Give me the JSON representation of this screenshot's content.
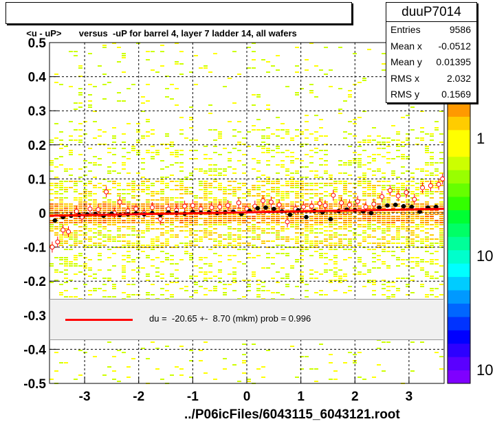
{
  "histogram": {
    "title": "<u - uP>       versus  -uP for barrel 4, layer 7 ladder 14, all wafers",
    "x_axis_title": "../P06icFiles/6043115_6043121.root"
  },
  "stats": {
    "name": "duuP7014",
    "rows": [
      {
        "label": "Entries",
        "value": "9586"
      },
      {
        "label": "Mean x",
        "value": "-0.0512"
      },
      {
        "label": "Mean y",
        "value": "0.01395"
      },
      {
        "label": "RMS x",
        "value": "2.032"
      },
      {
        "label": "RMS y",
        "value": "0.1569"
      }
    ]
  },
  "legend": {
    "fit_text": "du =  -20.65 +-  8.70 (mkm) prob = 0.996",
    "line_color": "#ff0000"
  },
  "palette_labels": {
    "top": "1",
    "middle": "10",
    "bottom": "10"
  },
  "colors": {
    "frame": "#000000",
    "fit": "#ff0000",
    "profile": "#000000",
    "open_marker": "#ff0000",
    "palette": [
      "#7f00ff",
      "#5a00ff",
      "#2d00ff",
      "#0000ff",
      "#0033ff",
      "#0066ff",
      "#0099ff",
      "#00ccff",
      "#00ffff",
      "#00ffcc",
      "#00ff99",
      "#00ff66",
      "#00ff33",
      "#33ff00",
      "#66ff00",
      "#99ff00",
      "#ccff00",
      "#ffff00",
      "#ffff00",
      "#ffcc00",
      "#ff9900"
    ]
  },
  "chart_data": {
    "type": "heatmap",
    "title": "<u - uP>       versus  -uP for barrel 4, layer 7 ladder 14, all wafers",
    "xlabel": "../P06icFiles/6043115_6043121.root",
    "ylabel": "",
    "xlim": [
      -3.65,
      3.65
    ],
    "ylim": [
      -0.5,
      0.5
    ],
    "x_ticks": [
      -3,
      -2,
      -1,
      0,
      1,
      2,
      3
    ],
    "y_ticks": [
      -0.5,
      -0.4,
      -0.3,
      -0.2,
      -0.1,
      0,
      0.1,
      0.2,
      0.3,
      0.4,
      0.5
    ],
    "grid": true,
    "fit_line": {
      "x": [
        -3.65,
        3.65
      ],
      "y": [
        -0.008,
        0.012
      ]
    },
    "profile_filled": {
      "x": [
        -3.55,
        -3.4,
        -3.25,
        -3.1,
        -2.95,
        -2.8,
        -2.65,
        -2.5,
        -2.35,
        -2.2,
        -2.05,
        -1.9,
        -1.75,
        -1.6,
        -1.45,
        -1.3,
        -1.15,
        -1.0,
        -0.85,
        -0.7,
        -0.55,
        -0.4,
        -0.25,
        -0.1,
        0.05,
        0.2,
        0.35,
        0.5,
        0.65,
        0.8,
        0.95,
        1.1,
        1.25,
        1.4,
        1.55,
        1.7,
        1.85,
        2.0,
        2.15,
        2.3,
        2.45,
        2.6,
        2.75,
        2.9,
        3.05,
        3.2,
        3.35,
        3.5
      ],
      "y": [
        -0.022,
        -0.012,
        -0.008,
        -0.006,
        -0.004,
        -0.003,
        -0.008,
        -0.002,
        -0.006,
        -0.004,
        -0.001,
        -0.004,
        0.0,
        -0.006,
        0.002,
        0.0,
        -0.002,
        0.003,
        0.001,
        0.002,
        0.0,
        0.002,
        0.004,
        -0.003,
        0.006,
        0.014,
        0.016,
        0.012,
        0.005,
        -0.005,
        0.008,
        -0.012,
        0.006,
        0.002,
        -0.018,
        0.006,
        0.01,
        0.008,
        0.005,
        0.0,
        0.016,
        0.022,
        0.024,
        0.02,
        0.018,
        0.004,
        0.016,
        0.018
      ]
    },
    "profile_open": {
      "x": [
        -3.6,
        -3.5,
        -3.4,
        -3.3,
        -3.15,
        -3.05,
        -2.9,
        -2.75,
        -2.6,
        -2.45,
        -2.35,
        -2.2,
        -2.05,
        -1.9,
        -1.75,
        -1.6,
        -1.45,
        -1.3,
        -1.15,
        -1.0,
        -0.85,
        -0.65,
        -0.5,
        -0.35,
        -0.15,
        0.0,
        0.15,
        0.3,
        0.45,
        0.6,
        0.75,
        0.9,
        1.05,
        1.2,
        1.35,
        1.45,
        1.6,
        1.75,
        1.9,
        2.05,
        2.2,
        2.35,
        2.5,
        2.65,
        2.8,
        2.95,
        3.1,
        3.25,
        3.4,
        3.55,
        3.62
      ],
      "y": [
        -0.1,
        -0.085,
        -0.05,
        -0.055,
        0.005,
        -0.012,
        0.012,
        0.01,
        0.062,
        0.0,
        0.032,
        0.006,
        0.012,
        0.0,
        0.016,
        -0.018,
        0.012,
        0.008,
        0.02,
        0.022,
        0.012,
        0.016,
        0.018,
        0.022,
        0.03,
        0.012,
        0.02,
        0.036,
        0.032,
        0.024,
        -0.026,
        0.012,
        0.018,
        0.02,
        0.028,
        0.022,
        0.052,
        0.03,
        0.024,
        0.034,
        0.018,
        0.026,
        0.048,
        0.066,
        0.05,
        0.06,
        0.04,
        0.074,
        0.08,
        0.084,
        0.1
      ]
    }
  }
}
